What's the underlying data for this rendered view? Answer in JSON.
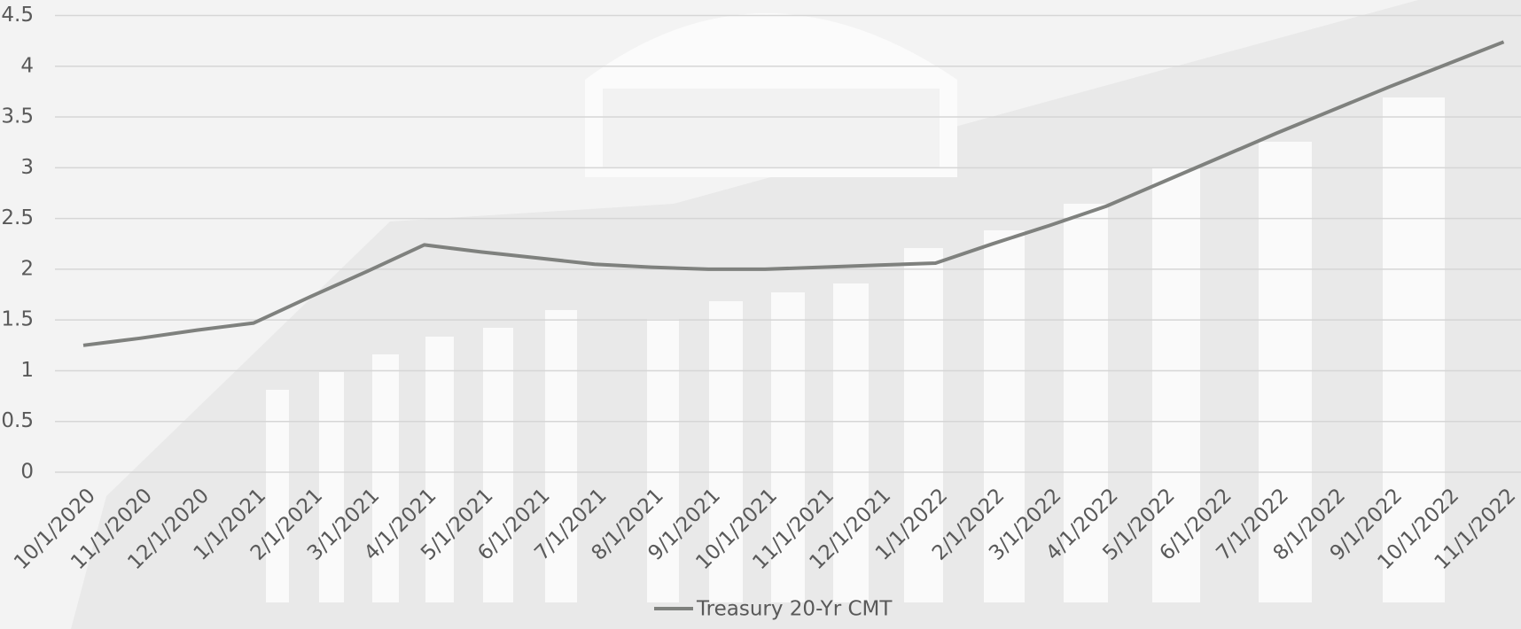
{
  "chart_data": {
    "type": "line",
    "categories": [
      "10/1/2020",
      "11/1/2020",
      "12/1/2020",
      "1/1/2021",
      "2/1/2021",
      "3/1/2021",
      "4/1/2021",
      "5/1/2021",
      "6/1/2021",
      "7/1/2021",
      "8/1/2021",
      "9/1/2021",
      "10/1/2021",
      "11/1/2021",
      "12/1/2021",
      "1/1/2022",
      "2/1/2022",
      "3/1/2022",
      "4/1/2022",
      "5/1/2022",
      "6/1/2022",
      "7/1/2022",
      "8/1/2022",
      "9/1/2022",
      "10/1/2022",
      "11/1/2022"
    ],
    "series": [
      {
        "name": "Treasury 20-Yr CMT",
        "color": "#7f817e",
        "values": [
          1.25,
          1.32,
          1.4,
          1.47,
          1.73,
          1.98,
          2.24,
          2.17,
          2.11,
          2.05,
          2.02,
          2.0,
          2.0,
          2.02,
          2.04,
          2.06,
          2.25,
          2.43,
          2.62,
          2.86,
          3.1,
          3.34,
          3.57,
          3.8,
          4.02,
          4.24
        ]
      }
    ],
    "ylim": [
      0,
      4.5
    ],
    "yticks": [
      0,
      0.5,
      1,
      1.5,
      2,
      2.5,
      3,
      3.5,
      4,
      4.5
    ],
    "grid": true,
    "legend": "bottom"
  }
}
